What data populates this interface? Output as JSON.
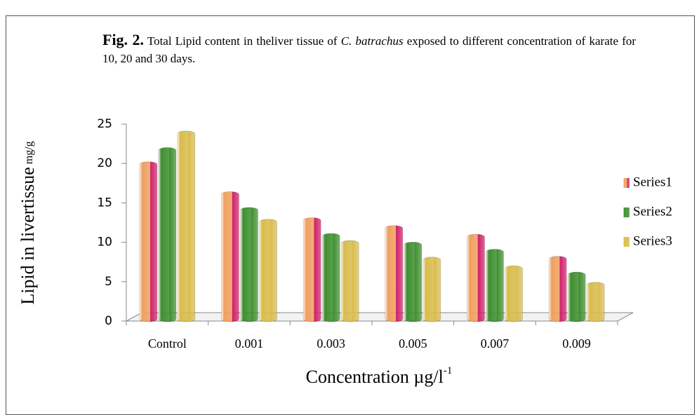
{
  "chart_data": {
    "type": "bar",
    "caption": {
      "label": "Fig. 2.",
      "text_before": "Total Lipid content in theliver tissue of",
      "species": "C. batrachus",
      "text_after": "exposed to different concentration of karate for 10, 20 and 30 days."
    },
    "y_label": {
      "text": "Lipid in livertissue",
      "unit": "mg/g"
    },
    "x_label": {
      "text": "Concentration  µg/l",
      "sup": "-1"
    },
    "categories": [
      "Control",
      "0.001",
      "0.003",
      "0.005",
      "0.007",
      "0.009"
    ],
    "series": [
      {
        "name": "Series1",
        "color": "#f0a060",
        "values": [
          19.6,
          15.8,
          12.5,
          11.5,
          10.4,
          7.6
        ]
      },
      {
        "name": "Series2",
        "color": "#3f8f2f",
        "values": [
          21.4,
          13.8,
          10.5,
          9.4,
          8.5,
          5.6
        ]
      },
      {
        "name": "Series3",
        "color": "#d8bc4c",
        "values": [
          23.5,
          12.3,
          9.6,
          7.5,
          6.4,
          4.3
        ]
      }
    ],
    "ylim": [
      0,
      25
    ],
    "yticks": [
      0,
      5,
      10,
      15,
      20,
      25
    ],
    "grid": false,
    "legend": "right"
  }
}
